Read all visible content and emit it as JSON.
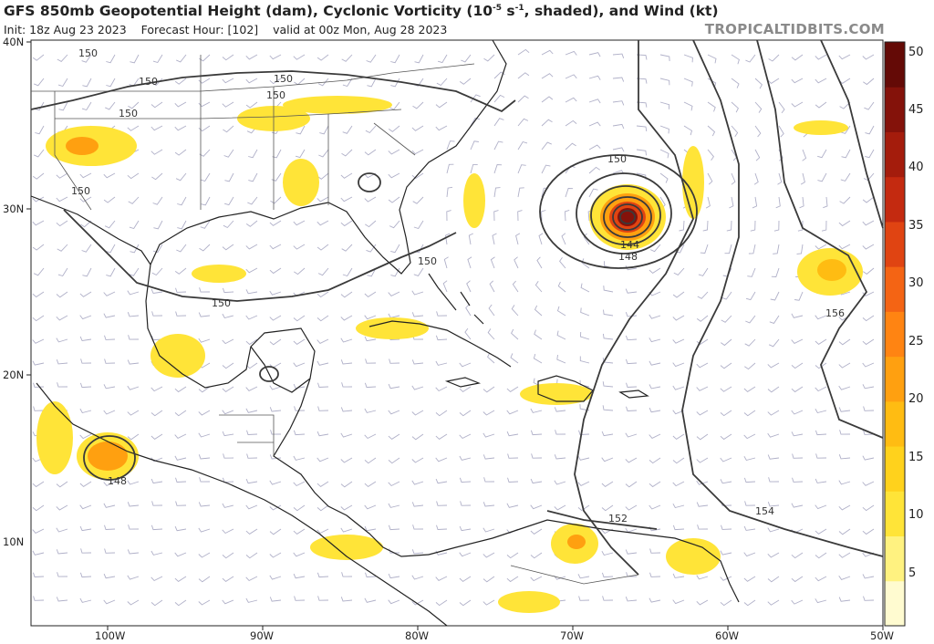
{
  "header": {
    "title": "GFS 850mb Geopotential Height (dam), Cyclonic Vorticity (10",
    "title_exp": "-5",
    "title_mid": " s",
    "title_exp2": "-1",
    "title_end": ", shaded), and Wind (kt)",
    "init": "Init: 18z Aug 23 2023",
    "forecast_hour": "Forecast Hour: [102]",
    "valid": "valid at 00z Mon, Aug 28 2023",
    "brand": "TROPICALTIDBITS.COM"
  },
  "axes": {
    "lat_labels": [
      "40N",
      "30N",
      "20N",
      "10N"
    ],
    "lon_labels": [
      "100W",
      "90W",
      "80W",
      "70W",
      "60W",
      "50W"
    ]
  },
  "contour_labels": [
    "150",
    "150",
    "150",
    "150",
    "150",
    "150",
    "150",
    "150",
    "144",
    "148",
    "156",
    "148",
    "152",
    "154"
  ],
  "colorbar": {
    "labels": [
      "50",
      "45",
      "40",
      "35",
      "30",
      "25",
      "20",
      "15",
      "10",
      "5"
    ],
    "colors": [
      "#fffbd0",
      "#fff280",
      "#ffe438",
      "#ffd21c",
      "#ffbc12",
      "#ffa010",
      "#ff8412",
      "#f46414",
      "#e04412",
      "#c42a10",
      "#a41c0c",
      "#84120a",
      "#640a06"
    ]
  },
  "colors": {
    "land_outline": "#222222",
    "contour": "#3a3a3a",
    "wind_barb": "#b0b0c8"
  }
}
